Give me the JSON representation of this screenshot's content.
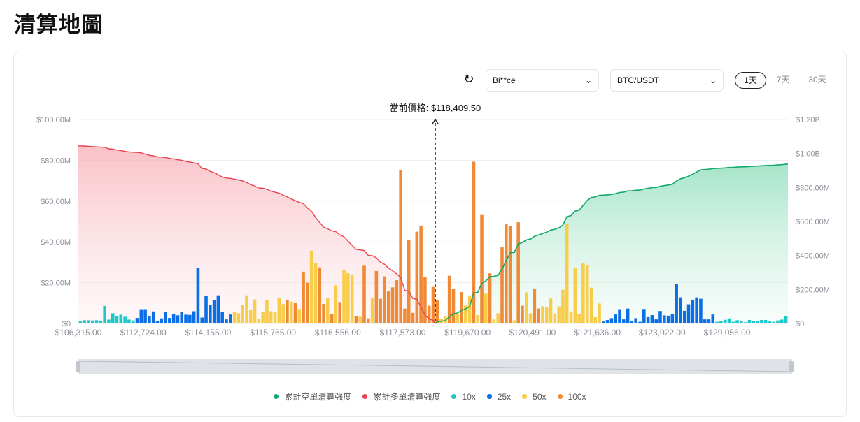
{
  "page_title": "清算地圖",
  "controls": {
    "refresh_icon": "refresh-icon",
    "exchange_value": "Bi**ce",
    "pair_value": "BTC/USDT",
    "ranges": [
      "1天",
      "7天",
      "30天"
    ],
    "active_range": "1天"
  },
  "colors": {
    "10x": "#1cc8c8",
    "25x": "#0a6fe6",
    "50x": "#f7cd4a",
    "100x": "#f08a36",
    "short_cum": "#13a86b",
    "long_cum": "#e8424f"
  },
  "chart_data": {
    "type": "bar",
    "current_price_label": "當前價格: $118,409.50",
    "y_left": {
      "min": 0,
      "max": 100,
      "unit": "$M",
      "ticks": [
        "$0",
        "$20.00M",
        "$40.00M",
        "$60.00M",
        "$80.00M",
        "$100.00M"
      ]
    },
    "y_right": {
      "min": 0,
      "max": 1.2,
      "unit": "$B",
      "ticks": [
        "$0",
        "$200.00M",
        "$400.00M",
        "$600.00M",
        "$800.00M",
        "$1.00B",
        "$1.20B"
      ]
    },
    "x_tick_labels": [
      "$106,315.00",
      "$112,724.00",
      "$114,155.00",
      "$115,765.00",
      "$116,556.00",
      "$117,573.00",
      "$119,670.00",
      "$120,491.00",
      "$121,636.00",
      "$123,022.00",
      "$129,056.00"
    ],
    "grid": true,
    "legend_position": "bottom",
    "legend": [
      "累計空單清算強度",
      "累計多單清算強度",
      "10x",
      "25x",
      "50x",
      "100x"
    ],
    "bars_left_of_price": {
      "values": [
        1.0,
        1.6,
        1.6,
        1.5,
        1.6,
        1.4,
        8.6,
        1.9,
        5.0,
        3.4,
        4.3,
        3.3,
        1.9,
        1.5,
        2.7,
        7.0,
        7.0,
        3.4,
        5.9,
        1.0,
        2.5,
        5.6,
        2.7,
        4.6,
        4.0,
        5.8,
        4.3,
        4.2,
        6.0,
        27.3,
        2.9,
        13.6,
        9.2,
        11.4,
        13.8,
        5.6,
        2.0,
        4.4,
        5.5,
        5.0,
        8.9,
        13.8,
        6.9,
        11.8,
        2.1,
        5.5,
        11.5,
        6.0,
        5.5,
        12.6,
        9.5,
        11.5,
        10.7,
        10.2,
        7.1,
        25.4,
        20.0,
        35.7,
        29.8,
        27.5,
        9.6,
        12.6,
        4.7,
        18.7,
        10.5,
        26.2,
        24.6,
        23.7,
        3.5,
        3.3,
        28.3,
        2.5,
        12.3,
        25.7,
        12.1,
        23.1,
        15.7,
        17.7,
        21.2,
        75.0,
        7.3,
        41.0,
        5.2,
        45.0,
        48.0,
        22.6,
        8.7,
        17.9
      ],
      "leverage": [
        "10x",
        "10x",
        "10x",
        "10x",
        "10x",
        "10x",
        "10x",
        "10x",
        "10x",
        "10x",
        "10x",
        "10x",
        "10x",
        "10x",
        "25x",
        "25x",
        "25x",
        "25x",
        "25x",
        "25x",
        "25x",
        "25x",
        "25x",
        "25x",
        "25x",
        "25x",
        "25x",
        "25x",
        "25x",
        "25x",
        "25x",
        "25x",
        "25x",
        "25x",
        "25x",
        "25x",
        "25x",
        "25x",
        "50x",
        "50x",
        "50x",
        "50x",
        "50x",
        "50x",
        "50x",
        "50x",
        "50x",
        "50x",
        "50x",
        "50x",
        "50x",
        "100x",
        "50x",
        "100x",
        "50x",
        "100x",
        "100x",
        "50x",
        "50x",
        "100x",
        "100x",
        "50x",
        "100x",
        "50x",
        "100x",
        "50x",
        "50x",
        "50x",
        "100x",
        "50x",
        "100x",
        "100x",
        "50x",
        "100x",
        "100x",
        "100x",
        "100x",
        "100x",
        "100x",
        "100x",
        "100x",
        "100x",
        "100x",
        "100x",
        "100x",
        "100x",
        "100x",
        "100x"
      ]
    },
    "bars_right_of_price": {
      "values": [
        11.3,
        2.1,
        3.4,
        23.4,
        17.1,
        4.4,
        15.4,
        8.8,
        13.8,
        79.3,
        4.1,
        53.2,
        14.6,
        24.6,
        2.0,
        5.0,
        37.3,
        49.0,
        47.7,
        1.5,
        49.6,
        8.7,
        15.3,
        5.0,
        16.8,
        7.3,
        8.4,
        8.1,
        12.2,
        4.9,
        8.4,
        16.5,
        49.0,
        5.9,
        27.1,
        4.5,
        29.4,
        28.4,
        17.6,
        3.1,
        9.8,
        1.0,
        1.7,
        2.6,
        4.4,
        7.0,
        2.0,
        7.3,
        1.0,
        2.6,
        0.8,
        7.1,
        3.1,
        4.1,
        2.0,
        6.1,
        4.0,
        3.8,
        4.5,
        19.3,
        12.8,
        6.2,
        9.4,
        11.5,
        12.8,
        12.1,
        2.0,
        2.0,
        4.4,
        0.8,
        1.1,
        1.8,
        2.5,
        0.8,
        1.6,
        1.0,
        0.6,
        1.7,
        1.1,
        1.1,
        1.7,
        1.7,
        1.0,
        0.8,
        1.5,
        1.9,
        3.5
      ],
      "leverage": [
        "100x",
        "50x",
        "50x",
        "100x",
        "100x",
        "50x",
        "100x",
        "50x",
        "50x",
        "100x",
        "50x",
        "100x",
        "50x",
        "100x",
        "50x",
        "50x",
        "100x",
        "100x",
        "100x",
        "50x",
        "100x",
        "100x",
        "50x",
        "50x",
        "100x",
        "100x",
        "50x",
        "50x",
        "50x",
        "50x",
        "50x",
        "50x",
        "50x",
        "50x",
        "50x",
        "50x",
        "50x",
        "50x",
        "50x",
        "50x",
        "50x",
        "25x",
        "25x",
        "25x",
        "25x",
        "25x",
        "25x",
        "25x",
        "25x",
        "25x",
        "25x",
        "25x",
        "25x",
        "25x",
        "25x",
        "25x",
        "25x",
        "25x",
        "25x",
        "25x",
        "25x",
        "25x",
        "25x",
        "25x",
        "25x",
        "25x",
        "25x",
        "25x",
        "25x",
        "10x",
        "10x",
        "10x",
        "10x",
        "10x",
        "10x",
        "10x",
        "10x",
        "10x",
        "10x",
        "10x",
        "10x",
        "10x",
        "10x",
        "10x",
        "10x",
        "10x",
        "10x"
      ]
    }
  }
}
